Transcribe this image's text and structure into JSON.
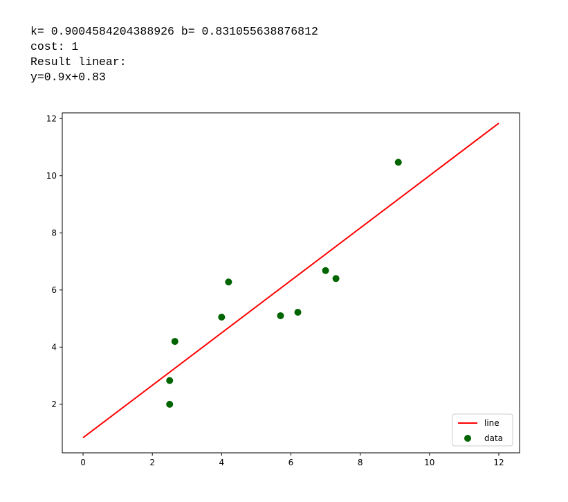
{
  "output": {
    "lines": [
      "k= 0.9004584204388926 b= 0.831055638876812",
      "cost: 1",
      "Result linear:",
      "y=0.9x+0.83"
    ]
  },
  "chart_data": {
    "type": "scatter",
    "xlim": [
      -0.6,
      12.6
    ],
    "ylim": [
      0.3,
      12.2
    ],
    "xticks": [
      0,
      2,
      4,
      6,
      8,
      10,
      12
    ],
    "yticks": [
      2,
      4,
      6,
      8,
      10,
      12
    ],
    "grid": false,
    "legend_position": "bottom-right",
    "series": [
      {
        "name": "line",
        "kind": "line",
        "color": "#ff0000",
        "x": [
          0,
          12
        ],
        "y": [
          0.831,
          11.837
        ]
      },
      {
        "name": "data",
        "kind": "scatter",
        "color": "#006400",
        "x": [
          2.5,
          2.5,
          2.65,
          4.0,
          4.2,
          5.7,
          6.2,
          7.0,
          7.3,
          9.1
        ],
        "y": [
          2.0,
          2.83,
          4.2,
          5.05,
          6.28,
          5.1,
          5.22,
          6.68,
          6.4,
          10.47
        ]
      }
    ]
  }
}
